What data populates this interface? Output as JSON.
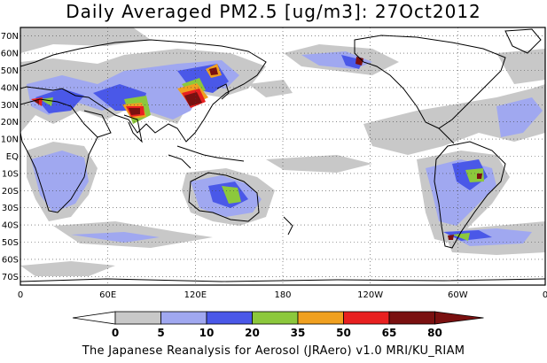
{
  "title": "Daily Averaged PM2.5 [ug/m3]: 27Oct2012",
  "footer": "The Japanese Reanalysis for Aerosol (JRAero) v1.0 MRI/KU_RIAM",
  "map": {
    "lon_range": [
      0,
      360
    ],
    "lat_range": [
      -75,
      75
    ],
    "lat_ticks": [
      "70N",
      "60N",
      "50N",
      "40N",
      "30N",
      "20N",
      "10N",
      "EQ",
      "10S",
      "20S",
      "30S",
      "40S",
      "50S",
      "60S",
      "70S"
    ],
    "lon_ticks": [
      "0",
      "60E",
      "120E",
      "180",
      "120W",
      "60W",
      "0"
    ],
    "grid": "dotted"
  },
  "colorbar": {
    "levels": [
      "0",
      "5",
      "10",
      "20",
      "35",
      "50",
      "65",
      "80"
    ],
    "colors": [
      "#ffffff",
      "#c8c8c8",
      "#a0a8f0",
      "#4a58e8",
      "#8cc83c",
      "#f0a020",
      "#e82020",
      "#7a1010"
    ]
  }
}
